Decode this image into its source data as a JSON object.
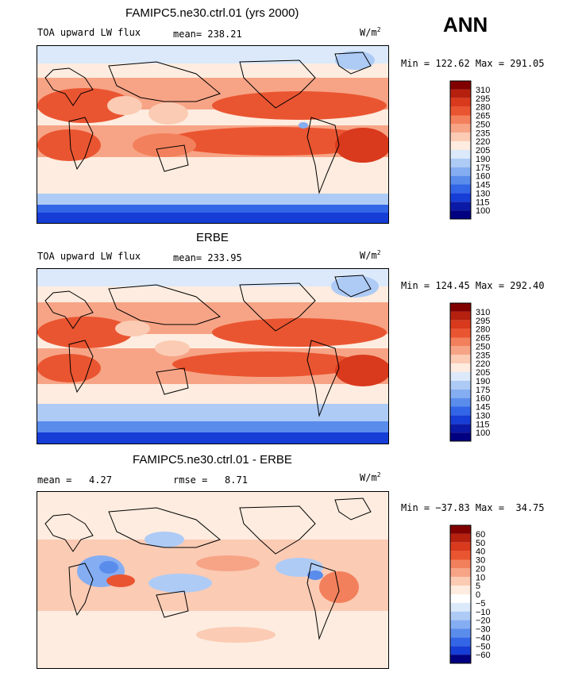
{
  "season_label": "ANN",
  "chart_data": [
    {
      "type": "heatmap",
      "title": "FAMIPC5.ne30.ctrl.01 (yrs 2000)",
      "left_label": "TOA upward LW flux",
      "mean_label": "mean=",
      "mean_value": "238.21",
      "units": "W/m",
      "units_exp": "2",
      "min_max": "Min = 122.62 Max = 291.05",
      "min": 122.62,
      "max": 291.05,
      "colorbar_levels": [
        "310",
        "295",
        "280",
        "265",
        "250",
        "235",
        "220",
        "205",
        "190",
        "175",
        "160",
        "145",
        "130",
        "115",
        "100"
      ],
      "colorbar_colors": [
        "#800000",
        "#b5200f",
        "#d9391c",
        "#ea5531",
        "#f3805c",
        "#f7a486",
        "#fbcbb4",
        "#fdecdf",
        "#dbe9fb",
        "#aecbf6",
        "#85adf2",
        "#5a8cec",
        "#3366e6",
        "#163dd6",
        "#0b1aa6",
        "#000080"
      ]
    },
    {
      "type": "heatmap",
      "title": "ERBE",
      "left_label": "TOA upward LW flux",
      "mean_label": "mean=",
      "mean_value": "233.95",
      "units": "W/m",
      "units_exp": "2",
      "min_max": "Min = 124.45 Max = 292.40",
      "min": 124.45,
      "max": 292.4,
      "colorbar_levels": [
        "310",
        "295",
        "280",
        "265",
        "250",
        "235",
        "220",
        "205",
        "190",
        "175",
        "160",
        "145",
        "130",
        "115",
        "100"
      ],
      "colorbar_colors": [
        "#800000",
        "#b5200f",
        "#d9391c",
        "#ea5531",
        "#f3805c",
        "#f7a486",
        "#fbcbb4",
        "#fdecdf",
        "#dbe9fb",
        "#aecbf6",
        "#85adf2",
        "#5a8cec",
        "#3366e6",
        "#163dd6",
        "#0b1aa6",
        "#000080"
      ]
    },
    {
      "type": "heatmap",
      "title": "FAMIPC5.ne30.ctrl.01 - ERBE",
      "mean_label": "mean =",
      "mean_value": "4.27",
      "rmse_label": "rmse =",
      "rmse_value": "8.71",
      "units": "W/m",
      "units_exp": "2",
      "min_max": "Min = −37.83 Max =  34.75",
      "min": -37.83,
      "max": 34.75,
      "colorbar_levels": [
        "60",
        "50",
        "40",
        "30",
        "20",
        "10",
        "5",
        "0",
        "−5",
        "−10",
        "−20",
        "−30",
        "−40",
        "−50",
        "−60"
      ],
      "colorbar_colors": [
        "#800000",
        "#b5200f",
        "#d9391c",
        "#ea5531",
        "#f3805c",
        "#f7a486",
        "#fbcbb4",
        "#fdecdf",
        "#ffffff",
        "#dbe9fb",
        "#aecbf6",
        "#85adf2",
        "#5a8cec",
        "#3366e6",
        "#163dd6",
        "#000080"
      ]
    }
  ]
}
